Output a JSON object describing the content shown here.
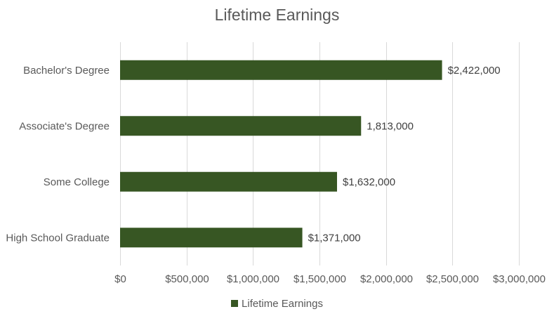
{
  "chart_data": {
    "type": "bar",
    "orientation": "horizontal",
    "title": "Lifetime Earnings",
    "categories": [
      "Bachelor's Degree",
      "Associate's Degree",
      "Some College",
      "High School Graduate"
    ],
    "series": [
      {
        "name": "Lifetime Earnings",
        "values": [
          2422000,
          1813000,
          1632000,
          1371000
        ],
        "data_labels": [
          "$2,422,000",
          "1,813,000",
          "$1,632,000",
          "$1,371,000"
        ],
        "color": "#375623"
      }
    ],
    "x_ticks": [
      "$0",
      "$500,000",
      "$1,000,000",
      "$1,500,000",
      "$2,000,000",
      "$2,500,000",
      "$3,000,000"
    ],
    "xlim": [
      0,
      3000000
    ],
    "tick_step": 500000,
    "grid": true,
    "legend_position": "bottom"
  }
}
